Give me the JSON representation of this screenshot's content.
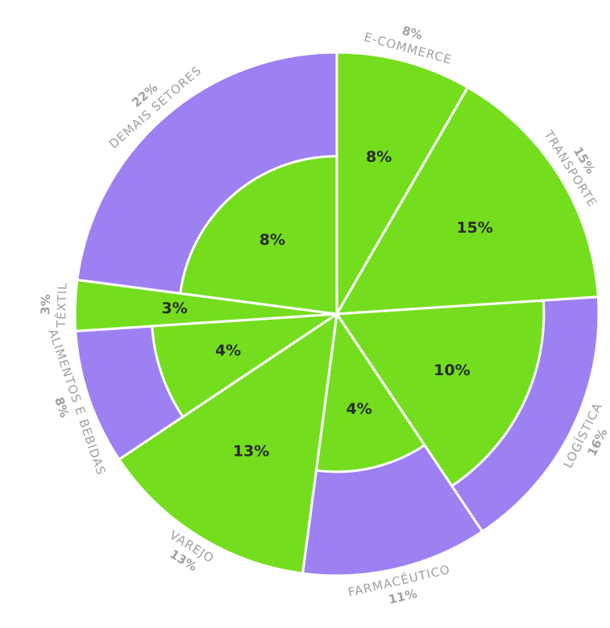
{
  "chart_data": {
    "type": "pie",
    "categories": [
      "E-COMMERCE",
      "TRANSPORTE",
      "LOGÍSTICA",
      "FARMACÊUTICO",
      "VAREJO",
      "ALIMENTOS E BEBIDAS",
      "TÊXTIL",
      "DEMAIS SETORES"
    ],
    "values": [
      8,
      15,
      16,
      11,
      13,
      8,
      3,
      22
    ],
    "value_labels": [
      "8%",
      "15%",
      "16%",
      "11%",
      "13%",
      "8%",
      "3%",
      "22%"
    ],
    "inner_values": [
      8,
      15,
      10,
      4,
      13,
      4,
      3,
      8
    ],
    "inner_value_labels": [
      "8%",
      "15%",
      "10%",
      "4%",
      "13%",
      "4%",
      "3%",
      "8%"
    ],
    "color": "#9d80f2",
    "inner_color": "#74de1e"
  }
}
